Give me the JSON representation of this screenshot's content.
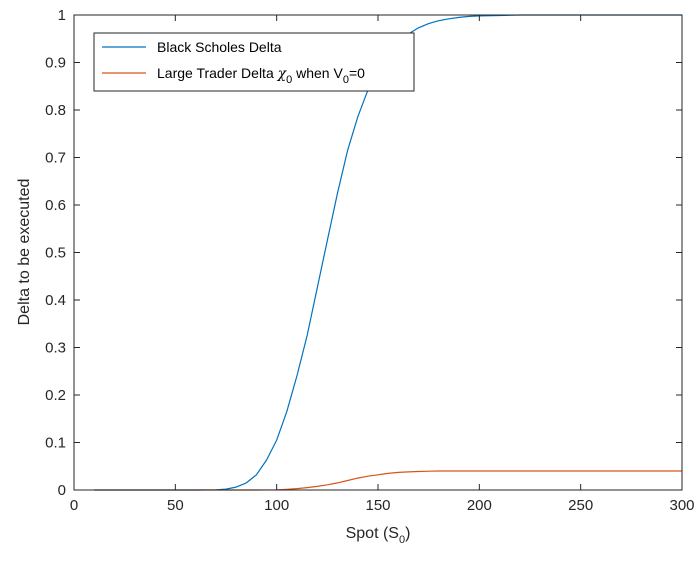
{
  "chart_data": {
    "type": "line",
    "title": "",
    "xlabel": {
      "text": "Spot (S",
      "sub": "0",
      "tail": ")"
    },
    "ylabel": "Delta to be executed",
    "xlim": [
      0,
      300
    ],
    "ylim": [
      0,
      1
    ],
    "xticks": [
      0,
      50,
      100,
      150,
      200,
      250,
      300
    ],
    "yticks": [
      0,
      0.1,
      0.2,
      0.3,
      0.4,
      0.5,
      0.6,
      0.7,
      0.8,
      0.9,
      1
    ],
    "grid": false,
    "legend_position": "top-left",
    "series": [
      {
        "name": "Black Scholes Delta",
        "color": "#0072bd",
        "x": [
          10,
          60,
          70,
          75,
          80,
          85,
          90,
          95,
          100,
          105,
          110,
          115,
          120,
          125,
          130,
          135,
          140,
          145,
          150,
          155,
          160,
          165,
          170,
          175,
          180,
          185,
          190,
          195,
          200,
          210,
          220,
          230,
          300
        ],
        "y": [
          0,
          0,
          0.0005,
          0.002,
          0.006,
          0.015,
          0.032,
          0.063,
          0.105,
          0.165,
          0.24,
          0.325,
          0.425,
          0.525,
          0.625,
          0.715,
          0.785,
          0.842,
          0.885,
          0.918,
          0.942,
          0.96,
          0.973,
          0.982,
          0.988,
          0.992,
          0.995,
          0.997,
          0.998,
          0.999,
          1.0,
          1.0,
          1.0
        ]
      },
      {
        "name_parts": {
          "pre": "Large Trader Delta ",
          "chi": "χ",
          "chi_sub": "0",
          "mid": " when V",
          "v_sub": "0",
          "post": "=0"
        },
        "color": "#d95319",
        "x": [
          10,
          90,
          100,
          105,
          110,
          115,
          120,
          125,
          130,
          135,
          140,
          145,
          150,
          155,
          160,
          165,
          170,
          175,
          180,
          190,
          200,
          300
        ],
        "y": [
          0,
          0,
          0.0005,
          0.0015,
          0.003,
          0.005,
          0.0075,
          0.011,
          0.015,
          0.02,
          0.025,
          0.029,
          0.032,
          0.035,
          0.037,
          0.038,
          0.039,
          0.0395,
          0.04,
          0.04,
          0.04,
          0.04
        ]
      }
    ]
  }
}
